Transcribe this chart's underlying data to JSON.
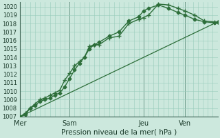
{
  "background_color": "#cce8dd",
  "grid_color": "#99ccbb",
  "line_color": "#2d6e3a",
  "xlabel": "Pression niveau de la mer( hPa )",
  "ylim": [
    1007,
    1020.5
  ],
  "yticks": [
    1007,
    1008,
    1009,
    1010,
    1011,
    1012,
    1013,
    1014,
    1015,
    1016,
    1017,
    1018,
    1019,
    1020
  ],
  "xtick_labels": [
    "Mer",
    "Sam",
    "Jeu",
    "Ven"
  ],
  "xtick_positions": [
    0,
    30,
    75,
    100
  ],
  "total_hours": 120,
  "series": [
    {
      "x": [
        0,
        3,
        6,
        9,
        12,
        15,
        18,
        21,
        24,
        27,
        30,
        33,
        36,
        39,
        42,
        45,
        48,
        54,
        60,
        66,
        72,
        75,
        78,
        84,
        90,
        96,
        100,
        106,
        112,
        118,
        120
      ],
      "y": [
        1007.0,
        1007.4,
        1008.0,
        1008.5,
        1009.0,
        1009.2,
        1009.5,
        1009.8,
        1010.1,
        1011.3,
        1012.1,
        1013.0,
        1013.5,
        1014.0,
        1015.3,
        1015.5,
        1015.5,
        1016.3,
        1016.5,
        1018.0,
        1018.5,
        1018.7,
        1019.0,
        1020.3,
        1020.2,
        1019.8,
        1019.5,
        1019.0,
        1018.3,
        1018.2,
        1018.2
      ],
      "marker": "+",
      "linewidth": 1.0,
      "markersize": 4
    },
    {
      "x": [
        0,
        3,
        6,
        9,
        12,
        15,
        18,
        21,
        24,
        27,
        30,
        33,
        36,
        39,
        42,
        45,
        48,
        54,
        60,
        66,
        72,
        75,
        78,
        84,
        90,
        96,
        100,
        106,
        112,
        118,
        120
      ],
      "y": [
        1007.0,
        1007.2,
        1008.0,
        1008.3,
        1008.8,
        1009.0,
        1009.2,
        1009.5,
        1009.8,
        1010.5,
        1011.5,
        1012.5,
        1013.3,
        1014.0,
        1015.0,
        1015.5,
        1015.8,
        1016.5,
        1017.0,
        1018.3,
        1018.8,
        1019.5,
        1019.8,
        1020.2,
        1019.8,
        1019.3,
        1019.0,
        1018.5,
        1018.2,
        1018.1,
        1018.2
      ],
      "marker": "D",
      "linewidth": 1.0,
      "markersize": 2.5
    },
    {
      "x": [
        0,
        120
      ],
      "y": [
        1007.0,
        1018.2
      ],
      "marker": null,
      "linewidth": 0.9,
      "markersize": 0
    }
  ]
}
